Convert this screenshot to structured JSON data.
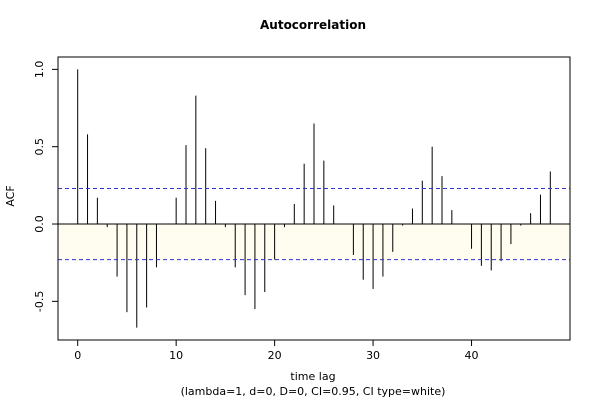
{
  "chart_data": {
    "type": "bar",
    "title": "Autocorrelation",
    "xlabel": "time lag",
    "subtitle": "(lambda=1, d=0, D=0, CI=0.95, CI type=white)",
    "ylabel": "ACF",
    "xlim": [
      -2,
      50
    ],
    "ylim": [
      -0.75,
      1.08
    ],
    "x_ticks": [
      0,
      10,
      20,
      30,
      40
    ],
    "y_ticks": [
      1.0,
      0.5,
      0.0,
      -0.5
    ],
    "y_tick_labels": [
      "1.0",
      "0.5",
      "0.0",
      "-0.5"
    ],
    "confidence_band": [
      0.23,
      -0.23
    ],
    "lags": [
      0,
      1,
      2,
      3,
      4,
      5,
      6,
      7,
      8,
      9,
      10,
      11,
      12,
      13,
      14,
      15,
      16,
      17,
      18,
      19,
      20,
      21,
      22,
      23,
      24,
      25,
      26,
      27,
      28,
      29,
      30,
      31,
      32,
      33,
      34,
      35,
      36,
      37,
      38,
      39,
      40,
      41,
      42,
      43,
      44,
      45,
      46,
      47,
      48
    ],
    "values": [
      1.0,
      0.58,
      0.17,
      -0.02,
      -0.34,
      -0.57,
      -0.67,
      -0.54,
      -0.28,
      0.0,
      0.17,
      0.51,
      0.83,
      0.49,
      0.15,
      -0.02,
      -0.28,
      -0.46,
      -0.55,
      -0.44,
      -0.23,
      -0.02,
      0.13,
      0.39,
      0.65,
      0.41,
      0.12,
      0.0,
      -0.2,
      -0.36,
      -0.42,
      -0.34,
      -0.18,
      -0.01,
      0.1,
      0.28,
      0.5,
      0.31,
      0.09,
      0.0,
      -0.16,
      -0.27,
      -0.3,
      -0.24,
      -0.13,
      -0.01,
      0.07,
      0.19,
      0.34
    ],
    "colors": {
      "bars": "#000000",
      "ci_line": "#3333cc",
      "band_fill": "#fffdf0"
    }
  }
}
